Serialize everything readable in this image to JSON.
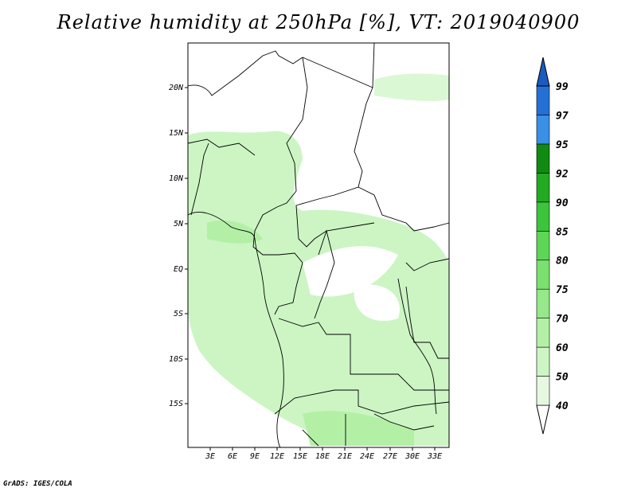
{
  "title": "Relative humidity at 250hPa [%], VT: 2019040900",
  "footer": "GrADS: IGES/COLA",
  "map": {
    "lat_labels": [
      "20N",
      "15N",
      "10N",
      "5N",
      "EQ",
      "5S",
      "10S",
      "15S"
    ],
    "lon_labels": [
      "3E",
      "6E",
      "9E",
      "12E",
      "15E",
      "18E",
      "21E",
      "24E",
      "27E",
      "30E",
      "33E"
    ]
  },
  "colorbar": {
    "levels": [
      "40",
      "50",
      "60",
      "70",
      "75",
      "80",
      "85",
      "90",
      "92",
      "95",
      "97",
      "99"
    ],
    "colors": [
      "#ffffff",
      "#e6f9e0",
      "#ccf5c3",
      "#b3f0a6",
      "#96e88a",
      "#7ae06e",
      "#5ed655",
      "#3cc43c",
      "#22aa22",
      "#108a10",
      "#3a8fe6",
      "#2470d6",
      "#1a5bbf"
    ]
  }
}
